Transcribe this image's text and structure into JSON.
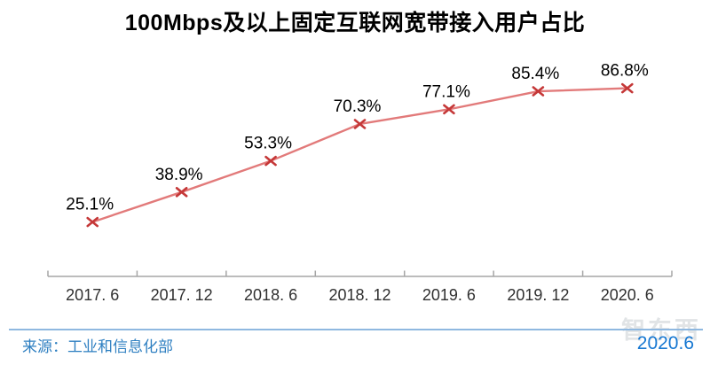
{
  "chart_data": {
    "type": "line",
    "title": "100Mbps及以上固定互联网宽带接入用户占比",
    "categories": [
      "2017. 6",
      "2017. 12",
      "2018. 6",
      "2018. 12",
      "2019. 6",
      "2019. 12",
      "2020. 6"
    ],
    "values": [
      25.1,
      38.9,
      53.3,
      70.3,
      77.1,
      85.4,
      86.8
    ],
    "data_labels": [
      "25.1%",
      "38.9%",
      "53.3%",
      "70.3%",
      "77.1%",
      "85.4%",
      "86.8%"
    ],
    "unit": "%",
    "xlabel": "",
    "ylabel": "",
    "ylim": [
      0,
      105
    ],
    "grid": false,
    "legend": "none",
    "marker": "x",
    "colors": {
      "line": "#e27a7a",
      "marker": "#c53838",
      "axis": "#a6a6a6",
      "data_label": "#000000",
      "tick_label": "#303030"
    }
  },
  "footer": {
    "source": "来源：工业和信息化部",
    "date": "2020.6",
    "watermark": "智东西",
    "source_color": "#2e7fc1",
    "date_color": "#1778d2",
    "divider_color": "#8fb8e0"
  }
}
